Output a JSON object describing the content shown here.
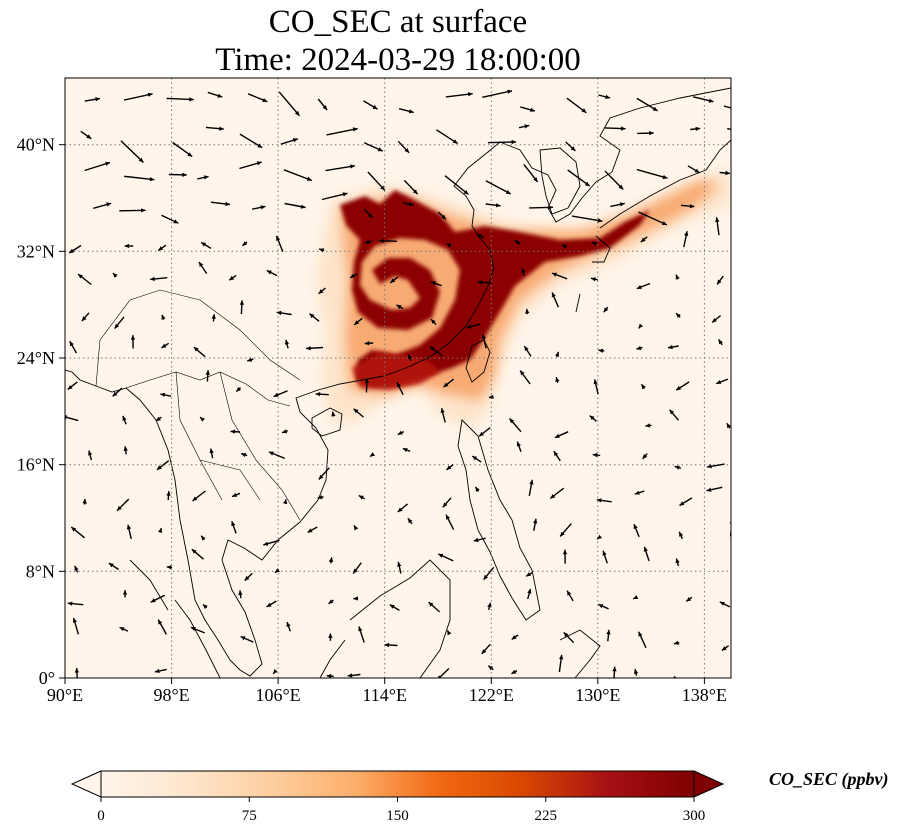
{
  "title": {
    "line1": "CO_SEC at surface",
    "line2": "Time: 2024-03-29 18:00:00"
  },
  "map": {
    "lon_range": [
      90,
      140
    ],
    "lat_range": [
      0,
      45
    ],
    "lon_ticks": [
      "90°E",
      "98°E",
      "106°E",
      "114°E",
      "122°E",
      "130°E",
      "138°E"
    ],
    "lat_ticks": [
      "0°",
      "8°N",
      "16°N",
      "24°N",
      "32°N",
      "40°N"
    ],
    "gridlines": true,
    "background_color": "#fff5eb",
    "vectors": "wind vectors"
  },
  "colorbar": {
    "label": "CO_SEC (ppbv)",
    "ticks": [
      "0",
      "75",
      "150",
      "225",
      "300"
    ],
    "min": 0,
    "max": 300,
    "extend": "both",
    "colormap": [
      "#fff5eb",
      "#fee6ce",
      "#fdd0a2",
      "#fdae6b",
      "#f16913",
      "#d94801",
      "#a50f15",
      "#7f0000"
    ]
  }
}
